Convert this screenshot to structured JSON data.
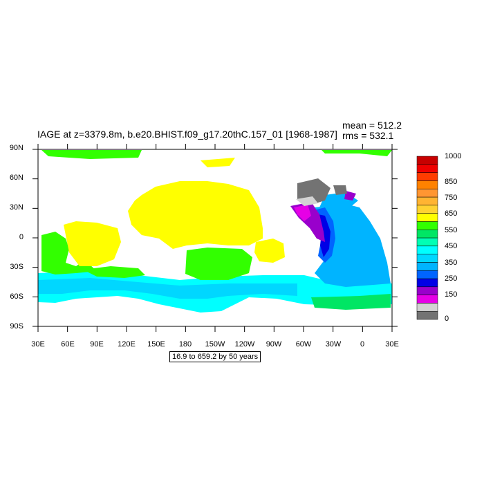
{
  "map": {
    "title": "IAGE at z=3379.8m, b.e20.BHIST.f09_g17.20thC.157_01 [1968-1987]",
    "mean_text": "mean = 512.2",
    "rms_text": "rms = 532.1",
    "info_box": "16.9 to 659.2 by 50 years",
    "lat_labels": [
      "90N",
      "60N",
      "30N",
      "0",
      "30S",
      "60S",
      "90S"
    ],
    "lon_labels": [
      "30E",
      "60E",
      "90E",
      "120E",
      "150E",
      "180",
      "150W",
      "120W",
      "90W",
      "60W",
      "30W",
      "0",
      "30E"
    ]
  },
  "colorbar": {
    "colors": [
      "#737373",
      "#d3d3d3",
      "#e600e6",
      "#9900cc",
      "#0000e6",
      "#0064ff",
      "#00b4ff",
      "#00d7ff",
      "#00ffff",
      "#00ffb4",
      "#00e664",
      "#32ff00",
      "#ffff00",
      "#ffd232",
      "#ffb432",
      "#ff9632",
      "#ff8200",
      "#ff3c00",
      "#f00000",
      "#c80000"
    ],
    "labels": [
      "0",
      "150",
      "250",
      "350",
      "450",
      "550",
      "650",
      "750",
      "850",
      "1000"
    ]
  },
  "field_colors": {
    "deep_pacific": "#ffff00",
    "indian": "#32ff00",
    "southern": "#00ffff",
    "southern_mid": "#00d7ff",
    "atlantic": "#00b4ff",
    "atlantic_deep": "#0064ff",
    "nadw_core": "#0000e6",
    "nadw_young": "#9900cc",
    "nadw_youngest": "#e600e6",
    "arctic_gray": "#737373",
    "arctic_light": "#d3d3d3",
    "green_south": "#00e664"
  }
}
